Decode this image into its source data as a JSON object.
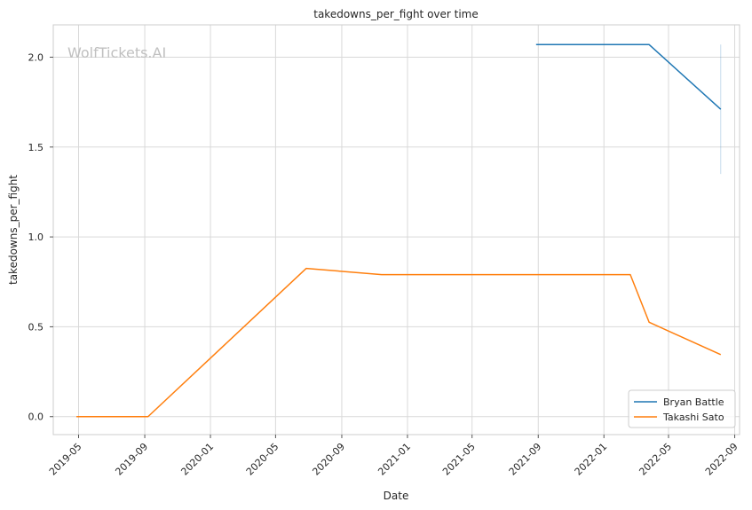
{
  "chart_data": {
    "type": "line",
    "title": "takedowns_per_fight over time",
    "xlabel": "Date",
    "ylabel": "takedowns_per_fight",
    "watermark": "WolfTickets.AI",
    "x_axis": {
      "type": "date",
      "range": [
        "2019-03-15",
        "2022-09-10"
      ],
      "ticks": [
        "2019-05-01",
        "2019-09-01",
        "2020-01-01",
        "2020-05-01",
        "2020-09-01",
        "2021-01-01",
        "2021-05-01",
        "2021-09-01",
        "2022-01-01",
        "2022-05-01",
        "2022-09-01"
      ],
      "tick_labels": [
        "2019-05",
        "2019-09",
        "2020-01",
        "2020-05",
        "2020-09",
        "2021-01",
        "2021-05",
        "2021-09",
        "2022-01",
        "2022-05",
        "2022-09"
      ]
    },
    "y_axis": {
      "range": [
        -0.1,
        2.18
      ],
      "ticks": [
        0.0,
        0.5,
        1.0,
        1.5,
        2.0
      ],
      "tick_labels": [
        "0.0",
        "0.5",
        "1.0",
        "1.5",
        "2.0"
      ]
    },
    "grid": true,
    "legend_position": "bottom-right",
    "series": [
      {
        "name": "Bryan Battle",
        "color": "#1f77b4",
        "points": [
          {
            "x": "2021-08-28",
            "y": 2.07
          },
          {
            "x": "2022-03-26",
            "y": 2.07
          },
          {
            "x": "2022-08-06",
            "y": 1.71
          }
        ],
        "band": {
          "x": "2022-08-06",
          "low": 1.35,
          "high": 2.07
        }
      },
      {
        "name": "Takashi Sato",
        "color": "#ff7f0e",
        "points": [
          {
            "x": "2019-04-27",
            "y": 0.0
          },
          {
            "x": "2019-09-07",
            "y": 0.0
          },
          {
            "x": "2020-06-27",
            "y": 0.825
          },
          {
            "x": "2020-11-14",
            "y": 0.79
          },
          {
            "x": "2022-02-19",
            "y": 0.79
          },
          {
            "x": "2022-03-26",
            "y": 0.525
          },
          {
            "x": "2022-08-06",
            "y": 0.345
          }
        ]
      }
    ]
  }
}
